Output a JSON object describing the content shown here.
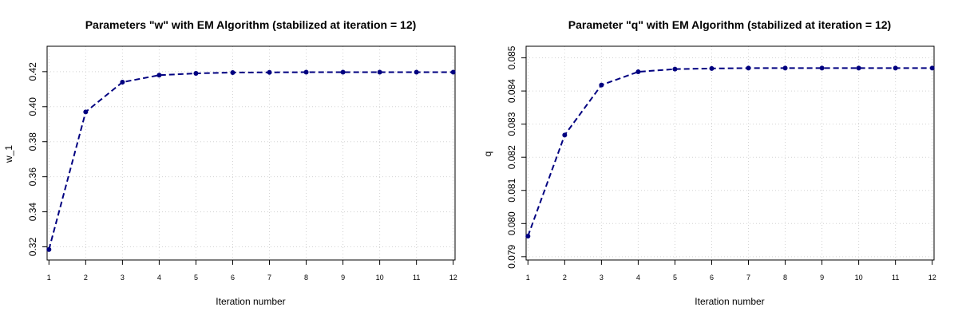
{
  "chart_data": [
    {
      "type": "line",
      "title": "Parameters \"w\" with EM Algorithm (stabilized at iteration = 12)",
      "xlabel": "Iteration number",
      "ylabel": "w_1",
      "x": [
        1,
        2,
        3,
        4,
        5,
        6,
        7,
        8,
        9,
        10,
        11,
        12
      ],
      "xticks": [
        "1",
        "2",
        "3",
        "4",
        "5",
        "6",
        "7",
        "8",
        "9",
        "10",
        "11",
        "12"
      ],
      "series": [
        {
          "values": [
            0.3185,
            0.397,
            0.414,
            0.418,
            0.419,
            0.4195,
            0.4196,
            0.4197,
            0.4197,
            0.4197,
            0.4197,
            0.4197
          ]
        }
      ],
      "yticks": [
        0.32,
        0.34,
        0.36,
        0.38,
        0.4,
        0.42
      ],
      "ytick_labels": [
        "0.32",
        "0.34",
        "0.36",
        "0.38",
        "0.40",
        "0.42"
      ],
      "xlim": [
        0.95,
        12.05
      ],
      "ylim": [
        0.3125,
        0.4345
      ],
      "grid": true,
      "color": "#000080"
    },
    {
      "type": "line",
      "title": "Parameter \"q\" with EM Algorithm (stabilized at iteration = 12)",
      "xlabel": "Iteration number",
      "ylabel": "q",
      "x": [
        1,
        2,
        3,
        4,
        5,
        6,
        7,
        8,
        9,
        10,
        11,
        12
      ],
      "xticks": [
        "1",
        "2",
        "3",
        "4",
        "5",
        "6",
        "7",
        "8",
        "9",
        "10",
        "11",
        "12"
      ],
      "series": [
        {
          "values": [
            0.07962,
            0.08267,
            0.08418,
            0.08458,
            0.08466,
            0.08468,
            0.08469,
            0.08469,
            0.08469,
            0.08469,
            0.08469,
            0.08469
          ]
        }
      ],
      "yticks": [
        0.079,
        0.08,
        0.081,
        0.082,
        0.083,
        0.084,
        0.085
      ],
      "ytick_labels": [
        "0.079",
        "0.080",
        "0.081",
        "0.082",
        "0.083",
        "0.084",
        "0.085"
      ],
      "xlim": [
        0.95,
        12.05
      ],
      "ylim": [
        0.0789,
        0.08535
      ],
      "grid": true,
      "color": "#000080"
    }
  ]
}
